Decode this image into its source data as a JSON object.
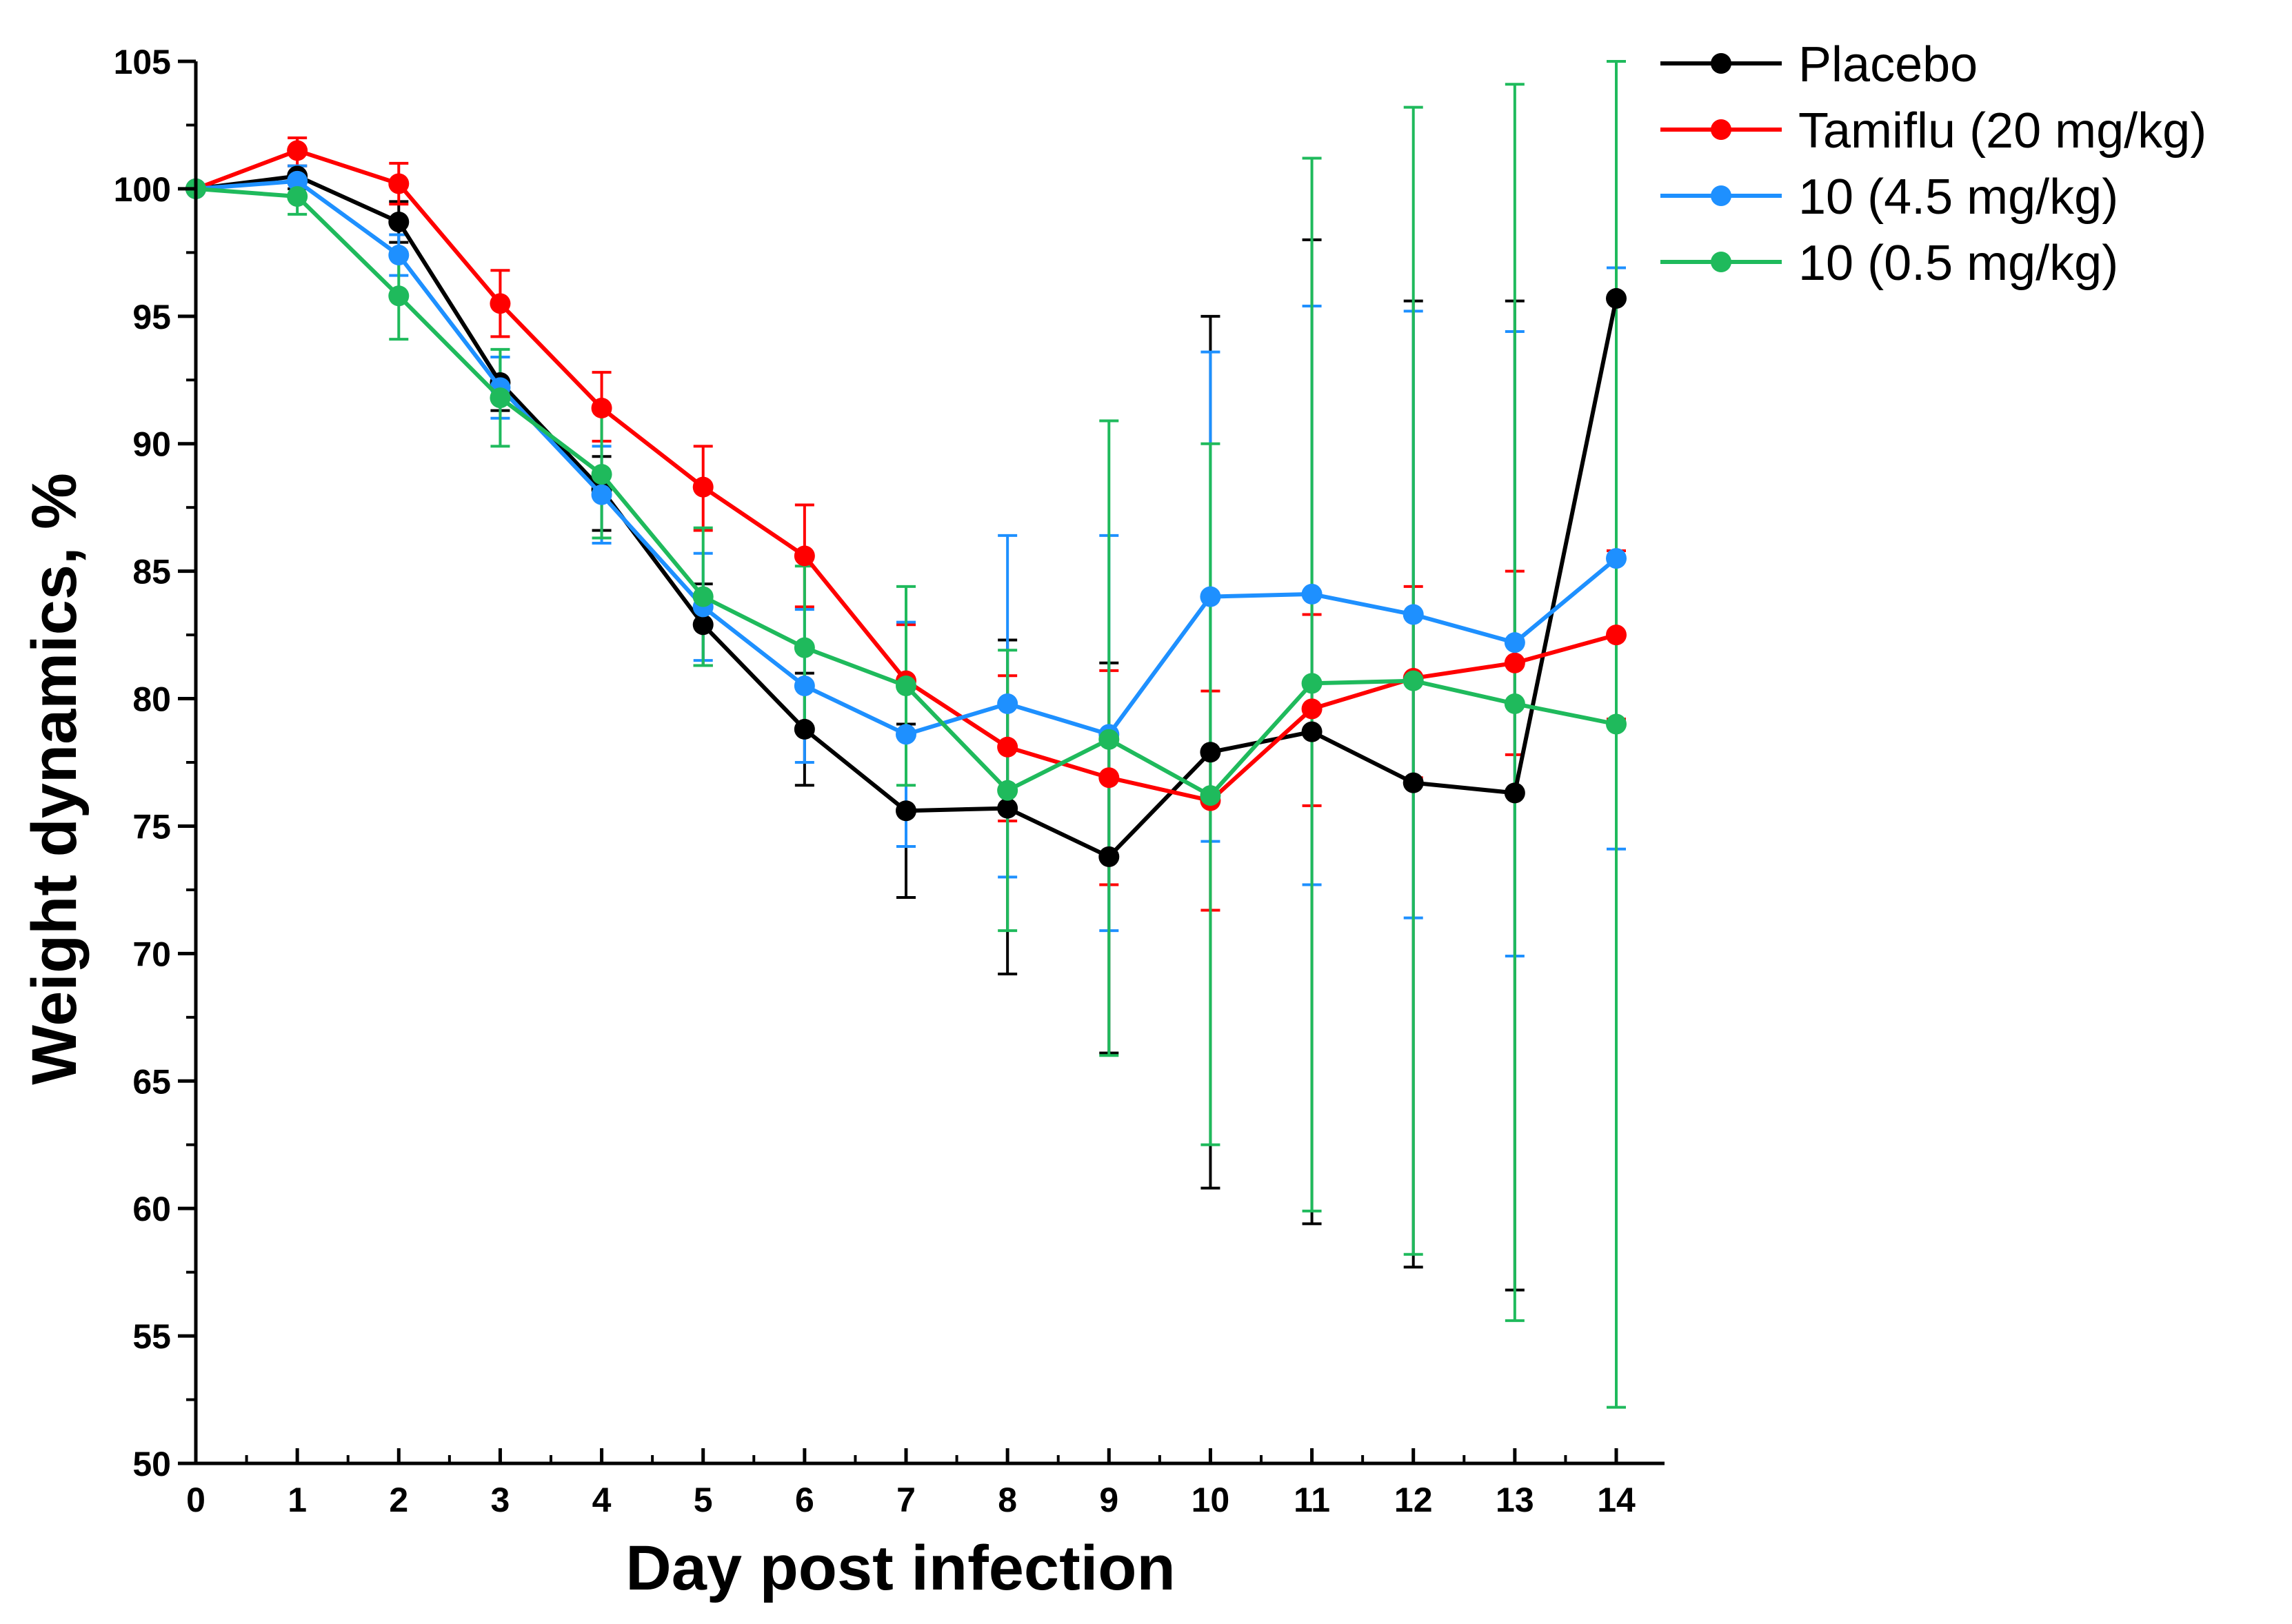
{
  "chart_data": {
    "type": "line",
    "title": "",
    "xlabel": "Day post infection",
    "ylabel": "Weight dynamics, %",
    "x": [
      0,
      1,
      2,
      3,
      4,
      5,
      6,
      7,
      8,
      9,
      10,
      11,
      12,
      13,
      14
    ],
    "xlim": [
      0,
      14
    ],
    "ylim": [
      50,
      105
    ],
    "xticks": [
      0,
      1,
      2,
      3,
      4,
      5,
      6,
      7,
      8,
      9,
      10,
      11,
      12,
      13,
      14
    ],
    "yticks": [
      50,
      55,
      60,
      65,
      70,
      75,
      80,
      85,
      90,
      95,
      100,
      105
    ],
    "grid": false,
    "legend_position": "top-right",
    "series": [
      {
        "name": "Placebo",
        "color": "#000000",
        "values": [
          100,
          100.5,
          98.7,
          92.4,
          88.2,
          82.9,
          78.8,
          75.6,
          75.7,
          73.8,
          77.9,
          78.7,
          76.7,
          76.3,
          95.7
        ],
        "err_low": [
          100,
          100.0,
          97.9,
          91.3,
          86.6,
          81.3,
          76.6,
          72.2,
          69.2,
          66.1,
          60.8,
          59.4,
          57.7,
          56.8,
          96.8
        ],
        "err_high": [
          100,
          100.9,
          99.5,
          93.4,
          89.5,
          84.5,
          81.0,
          79.0,
          82.3,
          81.4,
          95.0,
          98.0,
          95.6,
          95.6,
          96.8
        ]
      },
      {
        "name": "Tamiflu (20 mg/kg)",
        "color": "#ff0000",
        "values": [
          100,
          101.5,
          100.2,
          95.5,
          91.4,
          88.3,
          85.6,
          80.7,
          78.1,
          76.9,
          76.0,
          79.6,
          80.8,
          81.4,
          82.5
        ],
        "err_low": [
          100,
          100.9,
          99.4,
          94.2,
          90.1,
          86.6,
          83.6,
          78.5,
          75.2,
          72.7,
          71.7,
          75.8,
          76.9,
          77.8,
          79.2
        ],
        "err_high": [
          100,
          102.0,
          101.0,
          96.8,
          92.8,
          89.9,
          87.6,
          82.9,
          80.9,
          81.1,
          80.3,
          83.3,
          84.4,
          85.0,
          85.8
        ]
      },
      {
        "name": "10 (4.5 mg/kg)",
        "color": "#1e90ff",
        "values": [
          100,
          100.3,
          97.4,
          92.2,
          88.0,
          83.6,
          80.5,
          78.6,
          79.8,
          78.6,
          84.0,
          84.1,
          83.3,
          82.2,
          85.5
        ],
        "err_low": [
          100,
          99.7,
          96.6,
          91.0,
          86.1,
          81.5,
          77.5,
          74.2,
          73.0,
          70.9,
          74.4,
          72.7,
          71.4,
          69.9,
          74.1
        ],
        "err_high": [
          100,
          100.9,
          98.2,
          93.4,
          89.9,
          85.7,
          83.5,
          83.0,
          86.4,
          86.4,
          93.6,
          95.4,
          95.2,
          94.4,
          96.9
        ]
      },
      {
        "name": "10 (0.5 mg/kg)",
        "color": "#1fba5c",
        "values": [
          100,
          99.7,
          95.8,
          91.8,
          88.8,
          84.0,
          82.0,
          80.5,
          76.4,
          78.4,
          76.2,
          80.6,
          80.7,
          79.8,
          79.0
        ],
        "err_low": [
          100,
          99.0,
          94.1,
          89.9,
          86.3,
          81.3,
          78.8,
          76.6,
          70.9,
          66.0,
          62.5,
          59.9,
          58.2,
          55.6,
          52.2
        ],
        "err_high": [
          100,
          100.4,
          97.5,
          93.7,
          91.3,
          86.7,
          85.2,
          84.4,
          81.9,
          90.9,
          90.0,
          101.2,
          103.2,
          104.1,
          105.0
        ]
      }
    ]
  }
}
